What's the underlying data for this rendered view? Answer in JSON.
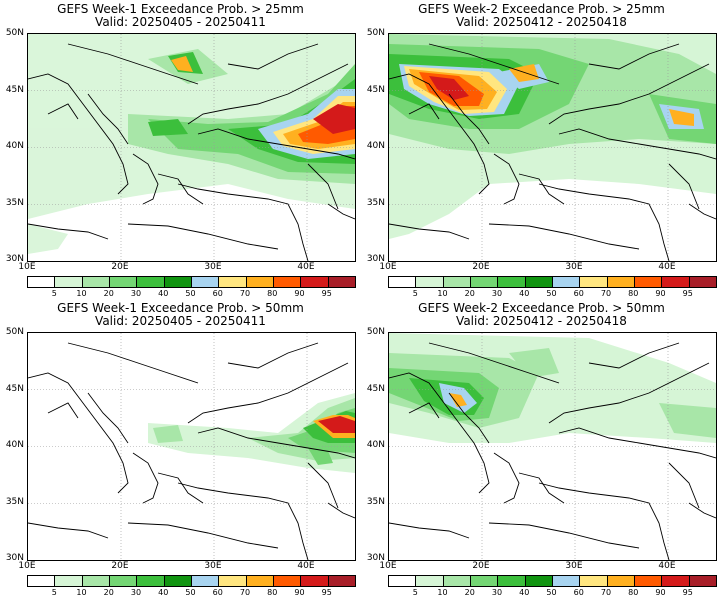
{
  "panels": [
    {
      "id": "p1",
      "title": "GEFS Week-1 Exceedance Prob. > 25mm",
      "valid": "Valid: 20250405 - 20250411"
    },
    {
      "id": "p2",
      "title": "GEFS Week-2 Exceedance Prob. > 25mm",
      "valid": "Valid: 20250412 - 20250418"
    },
    {
      "id": "p3",
      "title": "GEFS Week-1 Exceedance Prob. > 50mm",
      "valid": "Valid: 20250405 - 20250411"
    },
    {
      "id": "p4",
      "title": "GEFS Week-2 Exceedance Prob. > 50mm",
      "valid": "Valid: 20250412 - 20250418"
    }
  ],
  "lat_labels": [
    "50N",
    "45N",
    "40N",
    "35N",
    "30N"
  ],
  "lon_labels": [
    "10E",
    "20E",
    "30E",
    "40E"
  ],
  "colorbar": {
    "labels": [
      "5",
      "10",
      "20",
      "30",
      "40",
      "50",
      "60",
      "70",
      "80",
      "90",
      "95"
    ],
    "colors": [
      "#ffffff",
      "#d6f5d6",
      "#a8e6a8",
      "#74d674",
      "#3cbf3c",
      "#109410",
      "#a8d4f0",
      "#ffe680",
      "#ffb020",
      "#ff5a00",
      "#d41a1a",
      "#a81e28"
    ]
  },
  "palette": {
    "c5": "#d6f5d6",
    "c10": "#a8e6a8",
    "c20": "#74d674",
    "c30": "#3cbf3c",
    "c40": "#109410",
    "c50": "#a8d4f0",
    "c60": "#ffe680",
    "c70": "#ffb020",
    "c80": "#ff5a00",
    "c90": "#d41a1a",
    "c95": "#a81e28"
  }
}
